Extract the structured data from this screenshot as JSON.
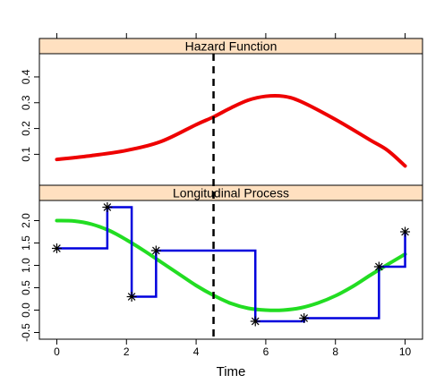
{
  "chart_data": {
    "type": "line",
    "xlabel": "Time",
    "x_ticks": [
      0,
      2,
      4,
      6,
      8,
      10
    ],
    "x_tick_labels": [
      "0",
      "2",
      "4",
      "6",
      "8",
      "10"
    ],
    "xlim": [
      -0.5,
      10.5
    ],
    "reference_line": {
      "x": 4.5,
      "style": "dashed",
      "color": "#000000"
    },
    "strip_color": "#ffe0c0",
    "panels": [
      {
        "title": "Hazard Function",
        "ylim": [
          -0.02,
          0.49
        ],
        "y_ticks": [
          0.1,
          0.2,
          0.3,
          0.4
        ],
        "y_tick_labels": [
          "0.1",
          "0.2",
          "0.3",
          "0.4"
        ],
        "series": [
          {
            "kind": "smooth",
            "color": "#ee0000",
            "x": [
              0,
              1,
              2,
              3,
              4,
              4.5,
              5,
              5.5,
              6,
              6.5,
              7,
              8,
              9,
              9.5,
              10
            ],
            "y": [
              0.08,
              0.095,
              0.115,
              0.15,
              0.215,
              0.245,
              0.28,
              0.31,
              0.325,
              0.325,
              0.305,
              0.235,
              0.155,
              0.115,
              0.055
            ]
          }
        ]
      },
      {
        "title": "Longitudinal Process",
        "ylim": [
          -0.65,
          2.45
        ],
        "y_ticks": [
          -0.5,
          0.0,
          0.5,
          1.0,
          1.5,
          2.0
        ],
        "y_tick_labels": [
          "-0.5",
          "0.0",
          "0.5",
          "1.0",
          "1.5",
          "2.0"
        ],
        "series": [
          {
            "kind": "smooth",
            "color": "#22dd22",
            "x": [
              0,
              0.5,
              1,
              1.5,
              2,
              2.5,
              3,
              3.5,
              4,
              4.5,
              5,
              5.5,
              6,
              6.5,
              7,
              7.5,
              8,
              8.5,
              9,
              9.5,
              10
            ],
            "y": [
              2.0,
              1.99,
              1.92,
              1.78,
              1.57,
              1.33,
              1.07,
              0.81,
              0.55,
              0.33,
              0.15,
              0.04,
              0.0,
              0.0,
              0.05,
              0.16,
              0.32,
              0.53,
              0.78,
              1.02,
              1.25
            ]
          },
          {
            "kind": "step",
            "color": "#0000dd",
            "marker": "asterisk",
            "x": [
              0,
              1.45,
              2.15,
              2.85,
              5.7,
              7.1,
              9.25,
              10
            ],
            "y": [
              1.38,
              2.3,
              0.3,
              1.33,
              -0.25,
              -0.18,
              0.97,
              1.75
            ]
          }
        ]
      }
    ]
  }
}
